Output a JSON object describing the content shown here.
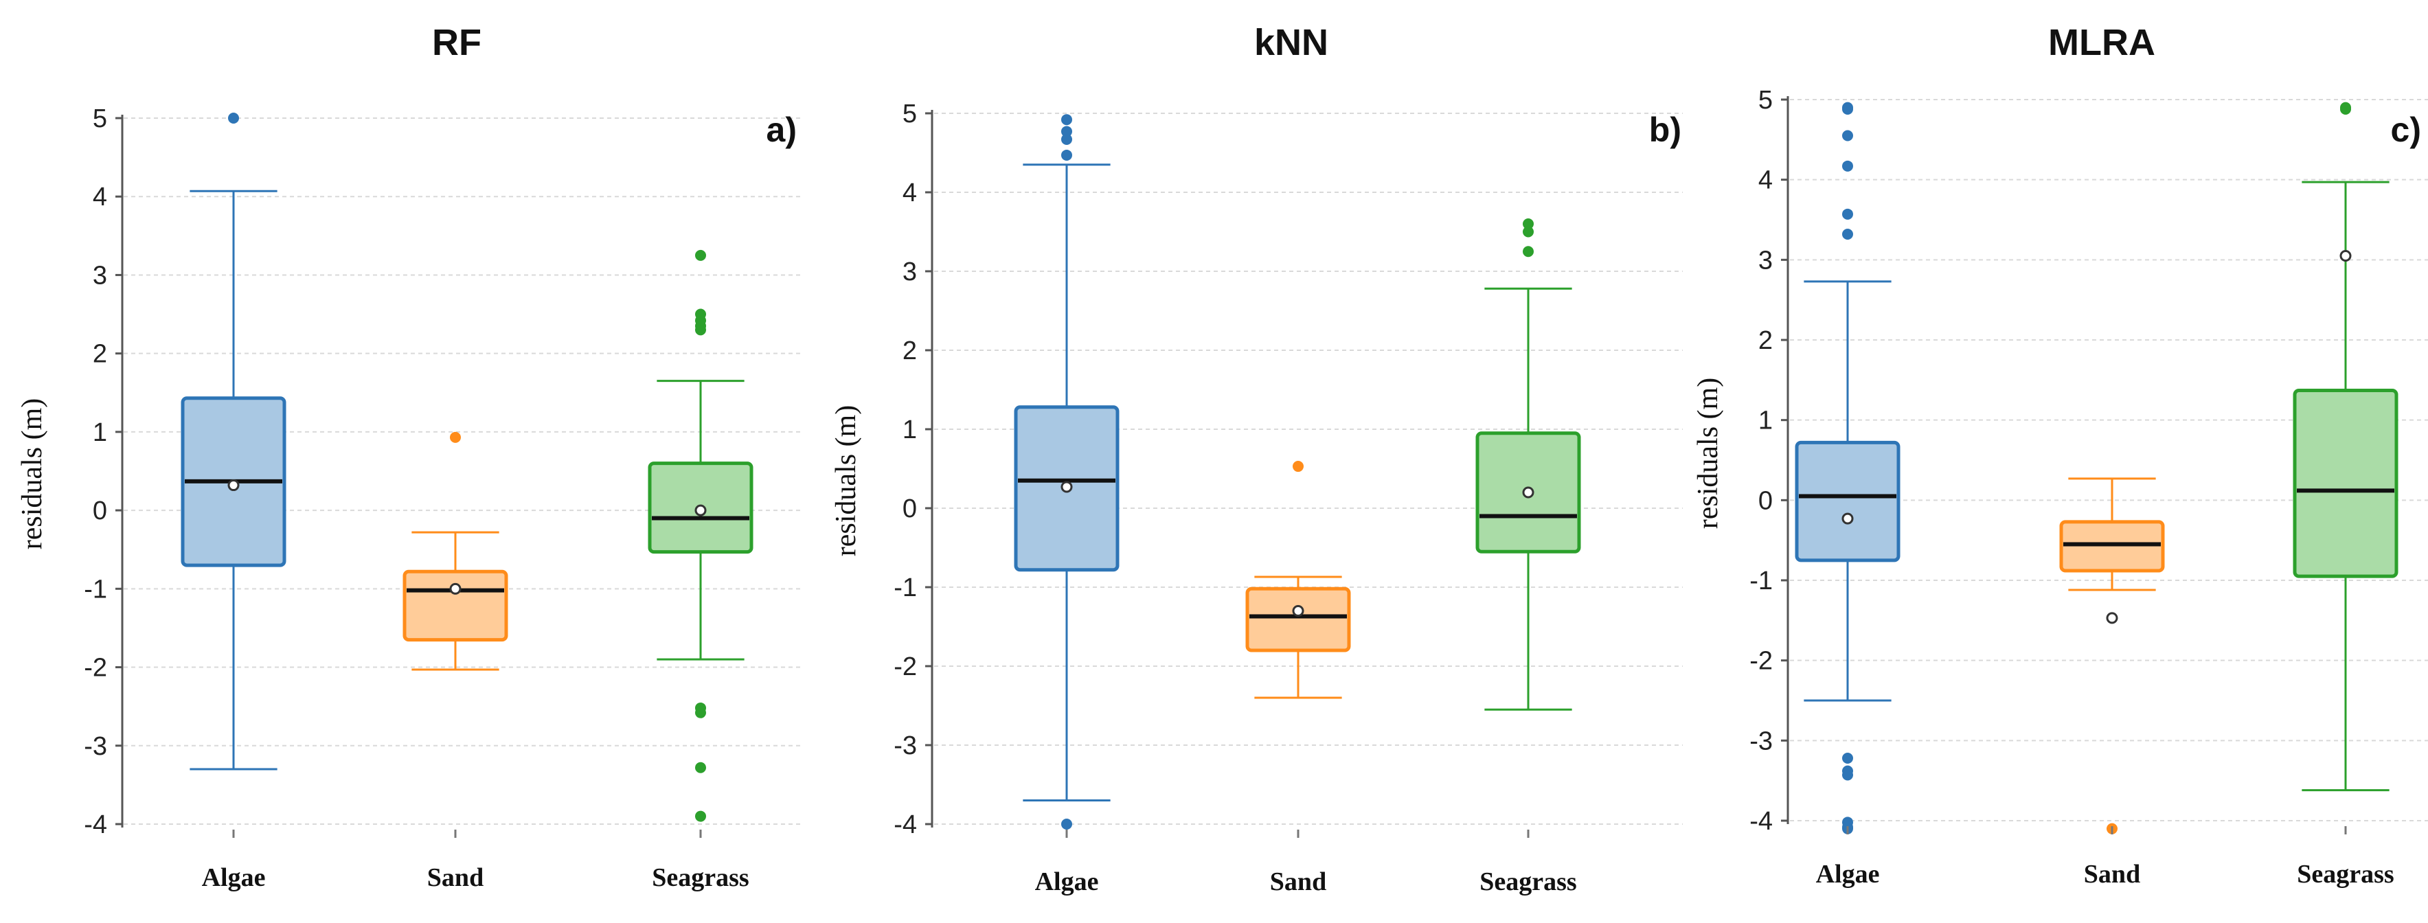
{
  "chart_data": [
    {
      "type": "box",
      "title": "RF",
      "panel_label": "a)",
      "ylabel": "residuals (m)",
      "ylim": [
        -4,
        5
      ],
      "yticks": [
        5,
        4,
        3,
        2,
        1,
        0,
        -1,
        -2,
        -3,
        -4
      ],
      "categories": [
        "Algae",
        "Sand",
        "Seagrass"
      ],
      "series": [
        {
          "name": "Algae",
          "color": "#2e75b6",
          "fill": "#a9c8e3",
          "whisker_low": -3.3,
          "q1": -0.7,
          "median": 0.37,
          "q3": 1.43,
          "whisker_high": 4.07,
          "mean": 0.32,
          "outliers": [
            5.0
          ]
        },
        {
          "name": "Sand",
          "color": "#ff8c1a",
          "fill": "#ffcc99",
          "whisker_low": -2.03,
          "q1": -1.65,
          "median": -1.02,
          "q3": -0.78,
          "whisker_high": -0.28,
          "mean": -1.0,
          "outliers": [
            0.93
          ]
        },
        {
          "name": "Seagrass",
          "color": "#2ca02c",
          "fill": "#aadca7",
          "whisker_low": -1.9,
          "q1": -0.53,
          "median": -0.1,
          "q3": 0.6,
          "whisker_high": 1.65,
          "mean": 0.0,
          "outliers": [
            3.25,
            2.5,
            2.42,
            2.35,
            2.3,
            -2.52,
            -2.58,
            -3.28,
            -3.9
          ]
        }
      ]
    },
    {
      "type": "box",
      "title": "kNN",
      "panel_label": "b)",
      "ylabel": "residuals (m)",
      "ylim": [
        -4,
        5
      ],
      "yticks": [
        5,
        4,
        3,
        2,
        1,
        0,
        -1,
        -2,
        -3,
        -4
      ],
      "categories": [
        "Algae",
        "Sand",
        "Seagrass"
      ],
      "series": [
        {
          "name": "Algae",
          "color": "#2e75b6",
          "fill": "#a9c8e3",
          "whisker_low": -3.7,
          "q1": -0.78,
          "median": 0.35,
          "q3": 1.28,
          "whisker_high": 4.35,
          "mean": 0.27,
          "outliers": [
            4.92,
            4.77,
            4.67,
            4.47,
            -4.0
          ]
        },
        {
          "name": "Sand",
          "color": "#ff8c1a",
          "fill": "#ffcc99",
          "whisker_low": -2.4,
          "q1": -1.8,
          "median": -1.37,
          "q3": -1.02,
          "whisker_high": -0.87,
          "mean": -1.3,
          "outliers": [
            0.53
          ]
        },
        {
          "name": "Seagrass",
          "color": "#2ca02c",
          "fill": "#aadca7",
          "whisker_low": -2.55,
          "q1": -0.55,
          "median": -0.1,
          "q3": 0.95,
          "whisker_high": 2.78,
          "mean": 0.2,
          "outliers": [
            3.6,
            3.5,
            3.25
          ]
        }
      ]
    },
    {
      "type": "box",
      "title": "MLRA",
      "panel_label": "c)",
      "ylabel": "residuals (m)",
      "ylim": [
        -4,
        5
      ],
      "yticks": [
        5,
        4,
        3,
        2,
        1,
        0,
        -1,
        -2,
        -3,
        -4
      ],
      "categories": [
        "Algae",
        "Sand",
        "Seagrass"
      ],
      "series": [
        {
          "name": "Algae",
          "color": "#2e75b6",
          "fill": "#a9c8e3",
          "whisker_low": -2.5,
          "q1": -0.75,
          "median": 0.05,
          "q3": 0.72,
          "whisker_high": 2.73,
          "mean": -0.23,
          "outliers": [
            4.9,
            4.88,
            4.55,
            4.17,
            3.57,
            3.32,
            -3.22,
            -3.38,
            -3.43,
            -4.02,
            -4.08,
            -4.1
          ]
        },
        {
          "name": "Sand",
          "color": "#ff8c1a",
          "fill": "#ffcc99",
          "whisker_low": -1.12,
          "q1": -0.88,
          "median": -0.55,
          "q3": -0.27,
          "whisker_high": 0.27,
          "mean": -1.47,
          "outliers": [
            -4.1
          ]
        },
        {
          "name": "Seagrass",
          "color": "#2ca02c",
          "fill": "#aadca7",
          "whisker_low": -3.62,
          "q1": -0.95,
          "median": 0.12,
          "q3": 1.37,
          "whisker_high": 3.97,
          "mean": 3.05,
          "outliers": [
            4.9,
            4.88
          ]
        }
      ]
    }
  ]
}
